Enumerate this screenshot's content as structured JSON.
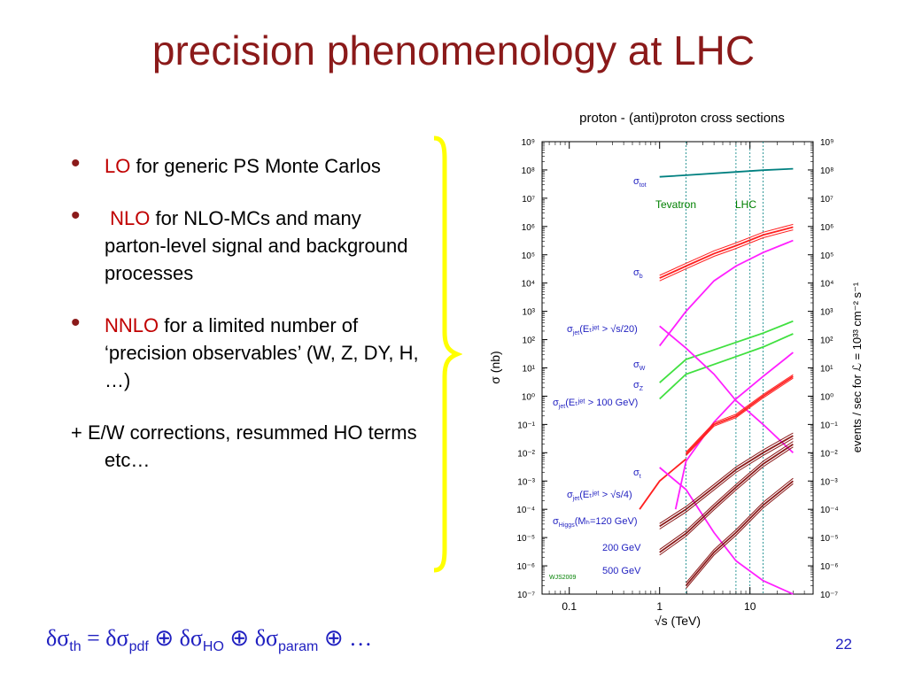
{
  "slide": {
    "title": "precision phenomenology at LHC",
    "page_number": "22"
  },
  "bullets": [
    {
      "highlight": "LO",
      "text": " for generic PS Monte Carlos"
    },
    {
      "highlight": "NLO",
      "text": " for NLO-MCs and many parton-level signal and background processes"
    },
    {
      "highlight": "NNLO",
      "text": " for a limited number of ‘precision observables’ (W, Z, DY, H, …)"
    }
  ],
  "extra_line": "+ E/W corrections, resummed HO terms etc…",
  "formula": {
    "d1": "δσ",
    "s1": "th",
    "eq": " = ",
    "d2": "δσ",
    "s2": "pdf",
    "op1": " ⊕ ",
    "d3": "δσ",
    "s3": "HO",
    "op2": " ⊕ ",
    "d4": "δσ",
    "s4": "param",
    "op3": " ⊕ …"
  },
  "colors": {
    "title": "#8b1a1a",
    "highlight": "#c00000",
    "formula": "#1f1fc0",
    "brace": "#ffff00",
    "tot": "#008080",
    "b": "#ff2020",
    "jet": "#ff20ff",
    "wz": "#40e040",
    "t": "#ff2020",
    "higgs": "#8b1a1a",
    "label": "#1f1fc0",
    "collider": "#008000"
  },
  "chart_data": {
    "type": "line",
    "title": "proton - (anti)proton cross sections",
    "xlabel": "√s (TeV)",
    "ylabel": "σ (nb)",
    "ylabel_right": "events / sec for ℒ = 10³³ cm⁻² s⁻¹",
    "x_scale": "log",
    "y_scale": "log",
    "xlim": [
      0.05,
      50
    ],
    "ylim": [
      1e-07,
      1000000000.0
    ],
    "x_ticks": [
      "0.1",
      "1",
      "10"
    ],
    "y_ticks_left": [
      "10⁻⁷",
      "10⁻⁶",
      "10⁻⁵",
      "10⁻⁴",
      "10⁻³",
      "10⁻²",
      "10⁻¹",
      "10⁰",
      "10¹",
      "10²",
      "10³",
      "10⁴",
      "10⁵",
      "10⁶",
      "10⁷",
      "10⁸",
      "10⁹"
    ],
    "y_ticks_right": [
      "10⁻⁷",
      "10⁻⁶",
      "10⁻⁵",
      "10⁻⁴",
      "10⁻³",
      "10⁻²",
      "10⁻¹",
      "10⁰",
      "10¹",
      "10²",
      "10³",
      "10⁴",
      "10⁵",
      "10⁶",
      "10⁷",
      "10⁸",
      "10⁹"
    ],
    "vertical_lines": [
      1.96,
      7,
      10,
      14
    ],
    "collider_labels": [
      "Tevatron",
      "LHC"
    ],
    "watermark": "WJS2009",
    "annotations": [
      {
        "main": "σ",
        "sub": "tot",
        "suffix": ""
      },
      {
        "main": "σ",
        "sub": "b",
        "suffix": ""
      },
      {
        "main": "σ",
        "sub": "jet",
        "suffix": "(Eₜʲᵉᵗ > √s/20)"
      },
      {
        "main": "σ",
        "sub": "W",
        "suffix": ""
      },
      {
        "main": "σ",
        "sub": "Z",
        "suffix": ""
      },
      {
        "main": "σ",
        "sub": "jet",
        "suffix": "(Eₜʲᵉᵗ > 100 GeV)"
      },
      {
        "main": "σ",
        "sub": "t",
        "suffix": ""
      },
      {
        "main": "σ",
        "sub": "jet",
        "suffix": "(Eₜʲᵉᵗ > √s/4)"
      },
      {
        "main": "σ",
        "sub": "Higgs",
        "suffix": "(Mₕ=120 GeV)"
      },
      {
        "main": "",
        "sub": "",
        "suffix": "200 GeV"
      },
      {
        "main": "",
        "sub": "",
        "suffix": "500 GeV"
      }
    ],
    "series": [
      {
        "key": "tot",
        "x": [
          1.0,
          1.96,
          7,
          14,
          30
        ],
        "y": [
          57000000.0,
          65000000.0,
          85000000.0,
          98000000.0,
          110000000.0
        ]
      },
      {
        "key": "b",
        "x": [
          1.0,
          1.96,
          4,
          7,
          14,
          30
        ],
        "y": [
          15000.0,
          40000.0,
          110000.0,
          210000.0,
          500000.0,
          950000.0
        ],
        "band": 1.25
      },
      {
        "key": "jet",
        "x": [
          1.0,
          1.96,
          4,
          7,
          14,
          30
        ],
        "y": [
          60,
          1000,
          12000.0,
          40000.0,
          120000.0,
          320000.0
        ]
      },
      {
        "key": "wz",
        "x": [
          1.0,
          1.96,
          7,
          14,
          30
        ],
        "y": [
          3,
          20,
          80,
          170,
          450
        ]
      },
      {
        "key": "wz",
        "x": [
          1.0,
          1.96,
          7,
          14,
          30
        ],
        "y": [
          0.8,
          6,
          25,
          55,
          160
        ]
      },
      {
        "key": "jet",
        "x": [
          1.0,
          1.96,
          4,
          7,
          14,
          30
        ],
        "y": [
          300,
          50,
          6,
          0.7,
          0.1,
          0.01
        ]
      },
      {
        "key": "jet",
        "x": [
          1.5,
          1.96,
          4,
          7,
          14,
          30
        ],
        "y": [
          0.0001,
          0.005,
          0.12,
          0.8,
          5,
          35
        ]
      },
      {
        "key": "t",
        "x": [
          0.6,
          1.0,
          1.96
        ],
        "y": [
          0.0001,
          0.001,
          0.006
        ]
      },
      {
        "key": "t",
        "x": [
          1.96,
          4,
          7,
          14,
          30
        ],
        "y": [
          0.009,
          0.1,
          0.2,
          1.0,
          5.0
        ],
        "band": 1.15
      },
      {
        "key": "jet",
        "x": [
          1.0,
          1.96,
          4,
          7,
          14,
          30
        ],
        "y": [
          0.003,
          0.0005,
          1.5e-05,
          1.5e-06,
          3e-07,
          1e-07
        ]
      },
      {
        "key": "higgs",
        "x": [
          1.0,
          1.96,
          4,
          7,
          14,
          30
        ],
        "y": [
          2.5e-05,
          0.0001,
          0.0006,
          0.0025,
          0.01,
          0.04
        ],
        "band": 1.25
      },
      {
        "key": "higgs",
        "x": [
          1.0,
          1.96,
          4,
          7,
          14,
          30
        ],
        "y": [
          3e-06,
          1.4e-05,
          0.00012,
          0.0006,
          0.004,
          0.02
        ],
        "band": 1.25
      },
      {
        "key": "higgs",
        "x": [
          1.96,
          4,
          7,
          14,
          30
        ],
        "y": [
          2e-07,
          3e-06,
          1.5e-05,
          0.00014,
          0.001
        ],
        "band": 1.25
      }
    ]
  }
}
